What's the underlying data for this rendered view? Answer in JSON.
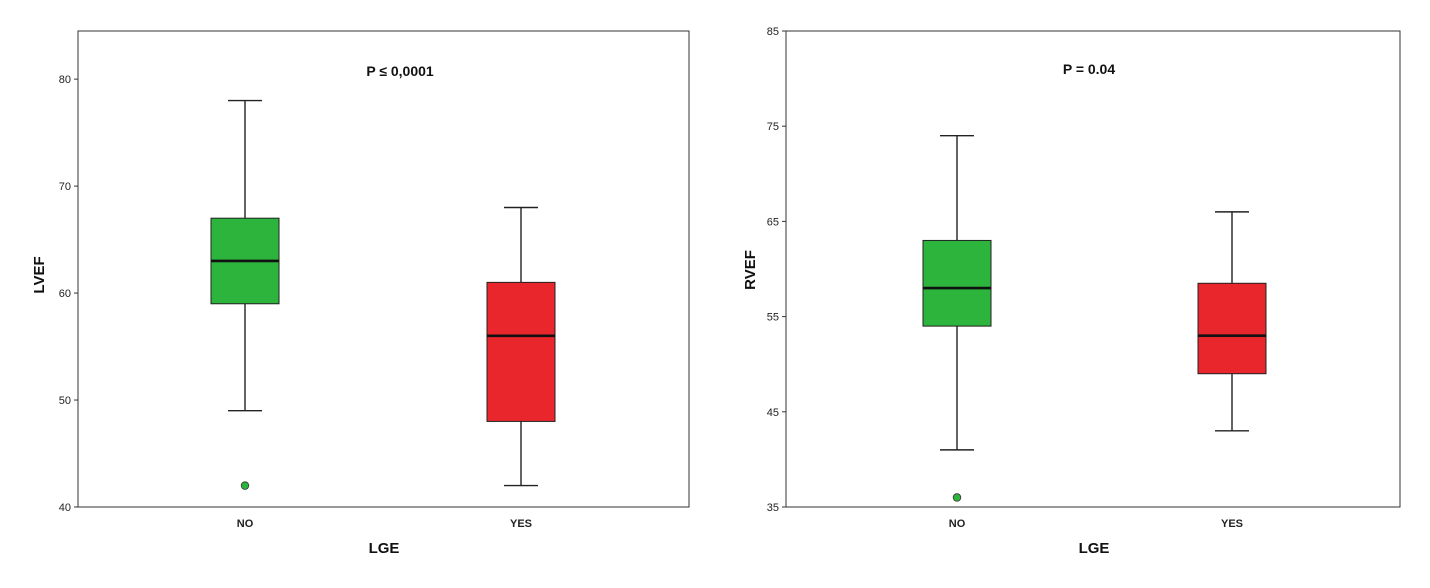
{
  "chart_data": [
    {
      "type": "box",
      "xlabel": "LGE",
      "ylabel": "LVEF",
      "annotation": "P ≤ 0,0001",
      "ylim": [
        40,
        84.5
      ],
      "yticks": [
        40,
        50,
        60,
        70,
        80
      ],
      "grid": false,
      "groups": [
        {
          "category": "NO",
          "min": 49,
          "q1": 59,
          "median": 63,
          "q3": 67,
          "max": 78,
          "outliers": [
            42
          ],
          "color": "#2db43c"
        },
        {
          "category": "YES",
          "min": 42,
          "q1": 48,
          "median": 56,
          "q3": 61,
          "max": 68,
          "outliers": [],
          "color": "#e8262b"
        }
      ]
    },
    {
      "type": "box",
      "xlabel": "LGE",
      "ylabel": "RVEF",
      "annotation": "P = 0.04",
      "ylim": [
        35,
        85
      ],
      "yticks": [
        35,
        45,
        55,
        65,
        75,
        85
      ],
      "grid": false,
      "groups": [
        {
          "category": "NO",
          "min": 41,
          "q1": 54,
          "median": 58,
          "q3": 63,
          "max": 74,
          "outliers": [
            36
          ],
          "color": "#2db43c"
        },
        {
          "category": "YES",
          "min": 43,
          "q1": 49,
          "median": 53,
          "q3": 58.5,
          "max": 66,
          "outliers": [],
          "color": "#e8262b"
        }
      ]
    }
  ]
}
